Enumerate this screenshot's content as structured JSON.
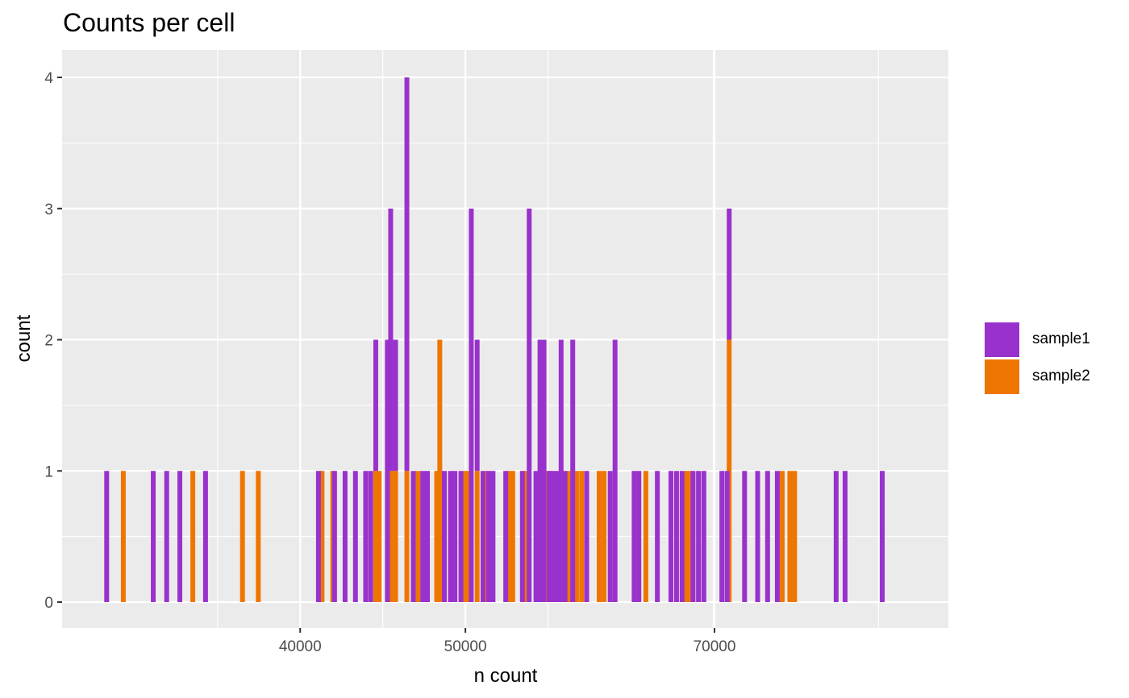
{
  "chart_data": {
    "type": "bar",
    "title": "Counts per cell",
    "xlabel": "n count",
    "ylabel": "count",
    "x_scale": "log10",
    "xlim": [
      29000,
      96000
    ],
    "ylim": [
      0,
      4
    ],
    "x_ticks": [
      40000,
      50000,
      70000
    ],
    "x_tick_labels": [
      "40000",
      "50000",
      "70000"
    ],
    "y_ticks": [
      0,
      1,
      2,
      3,
      4
    ],
    "y_tick_labels": [
      "0",
      "1",
      "2",
      "3",
      "4"
    ],
    "grid": true,
    "legend_position": "right",
    "stacked": true,
    "series": [
      {
        "name": "sample1",
        "color": "#9932CC",
        "bins": [
          {
            "x": 30800,
            "count": 1
          },
          {
            "x": 32800,
            "count": 1
          },
          {
            "x": 33400,
            "count": 1
          },
          {
            "x": 34000,
            "count": 1
          },
          {
            "x": 35200,
            "count": 1
          },
          {
            "x": 41000,
            "count": 1
          },
          {
            "x": 41900,
            "count": 1
          },
          {
            "x": 42500,
            "count": 1
          },
          {
            "x": 43100,
            "count": 1
          },
          {
            "x": 43700,
            "count": 1
          },
          {
            "x": 44000,
            "count": 1
          },
          {
            "x": 44300,
            "count": 1
          },
          {
            "x": 45000,
            "count": 2
          },
          {
            "x": 45200,
            "count": 2
          },
          {
            "x": 45500,
            "count": 1
          },
          {
            "x": 46200,
            "count": 3
          },
          {
            "x": 46600,
            "count": 1
          },
          {
            "x": 47200,
            "count": 1
          },
          {
            "x": 47500,
            "count": 1
          },
          {
            "x": 48600,
            "count": 1
          },
          {
            "x": 49000,
            "count": 1
          },
          {
            "x": 49300,
            "count": 1
          },
          {
            "x": 49700,
            "count": 1
          },
          {
            "x": 50400,
            "count": 3
          },
          {
            "x": 50800,
            "count": 1
          },
          {
            "x": 51200,
            "count": 1
          },
          {
            "x": 51600,
            "count": 1
          },
          {
            "x": 51900,
            "count": 1
          },
          {
            "x": 52800,
            "count": 1
          },
          {
            "x": 54000,
            "count": 1
          },
          {
            "x": 54500,
            "count": 3
          },
          {
            "x": 55000,
            "count": 1
          },
          {
            "x": 55300,
            "count": 2
          },
          {
            "x": 55600,
            "count": 2
          },
          {
            "x": 56000,
            "count": 1
          },
          {
            "x": 56300,
            "count": 1
          },
          {
            "x": 56600,
            "count": 1
          },
          {
            "x": 56900,
            "count": 2
          },
          {
            "x": 57200,
            "count": 1
          },
          {
            "x": 57800,
            "count": 2
          },
          {
            "x": 58900,
            "count": 1
          },
          {
            "x": 60800,
            "count": 1
          },
          {
            "x": 61200,
            "count": 2
          },
          {
            "x": 62800,
            "count": 1
          },
          {
            "x": 63200,
            "count": 1
          },
          {
            "x": 64800,
            "count": 1
          },
          {
            "x": 66000,
            "count": 1
          },
          {
            "x": 66500,
            "count": 1
          },
          {
            "x": 67000,
            "count": 1
          },
          {
            "x": 68000,
            "count": 1
          },
          {
            "x": 68500,
            "count": 1
          },
          {
            "x": 69000,
            "count": 1
          },
          {
            "x": 70700,
            "count": 1
          },
          {
            "x": 71200,
            "count": 1
          },
          {
            "x": 71400,
            "count": 1
          },
          {
            "x": 72900,
            "count": 1
          },
          {
            "x": 74200,
            "count": 1
          },
          {
            "x": 75200,
            "count": 1
          },
          {
            "x": 76200,
            "count": 1
          },
          {
            "x": 82500,
            "count": 1
          },
          {
            "x": 83500,
            "count": 1
          },
          {
            "x": 87800,
            "count": 1
          }
        ]
      },
      {
        "name": "sample2",
        "color": "#EE7600",
        "bins": [
          {
            "x": 31500,
            "count": 1
          },
          {
            "x": 34600,
            "count": 1
          },
          {
            "x": 37000,
            "count": 1
          },
          {
            "x": 37800,
            "count": 1
          },
          {
            "x": 41200,
            "count": 1
          },
          {
            "x": 41800,
            "count": 1
          },
          {
            "x": 44300,
            "count": 1
          },
          {
            "x": 44500,
            "count": 1
          },
          {
            "x": 45200,
            "count": 1
          },
          {
            "x": 45500,
            "count": 1
          },
          {
            "x": 46200,
            "count": 1
          },
          {
            "x": 46900,
            "count": 1
          },
          {
            "x": 48100,
            "count": 1
          },
          {
            "x": 48300,
            "count": 2
          },
          {
            "x": 49900,
            "count": 1
          },
          {
            "x": 50200,
            "count": 1
          },
          {
            "x": 50800,
            "count": 1
          },
          {
            "x": 51400,
            "count": 1
          },
          {
            "x": 53000,
            "count": 1
          },
          {
            "x": 53300,
            "count": 1
          },
          {
            "x": 54200,
            "count": 1
          },
          {
            "x": 55900,
            "count": 1
          },
          {
            "x": 56200,
            "count": 1
          },
          {
            "x": 57500,
            "count": 1
          },
          {
            "x": 58100,
            "count": 1
          },
          {
            "x": 58500,
            "count": 1
          },
          {
            "x": 59900,
            "count": 1
          },
          {
            "x": 60300,
            "count": 1
          },
          {
            "x": 63800,
            "count": 1
          },
          {
            "x": 67400,
            "count": 1
          },
          {
            "x": 67800,
            "count": 1
          },
          {
            "x": 71400,
            "count": 2
          },
          {
            "x": 76700,
            "count": 1
          },
          {
            "x": 77500,
            "count": 1
          },
          {
            "x": 78000,
            "count": 1
          }
        ]
      }
    ]
  }
}
